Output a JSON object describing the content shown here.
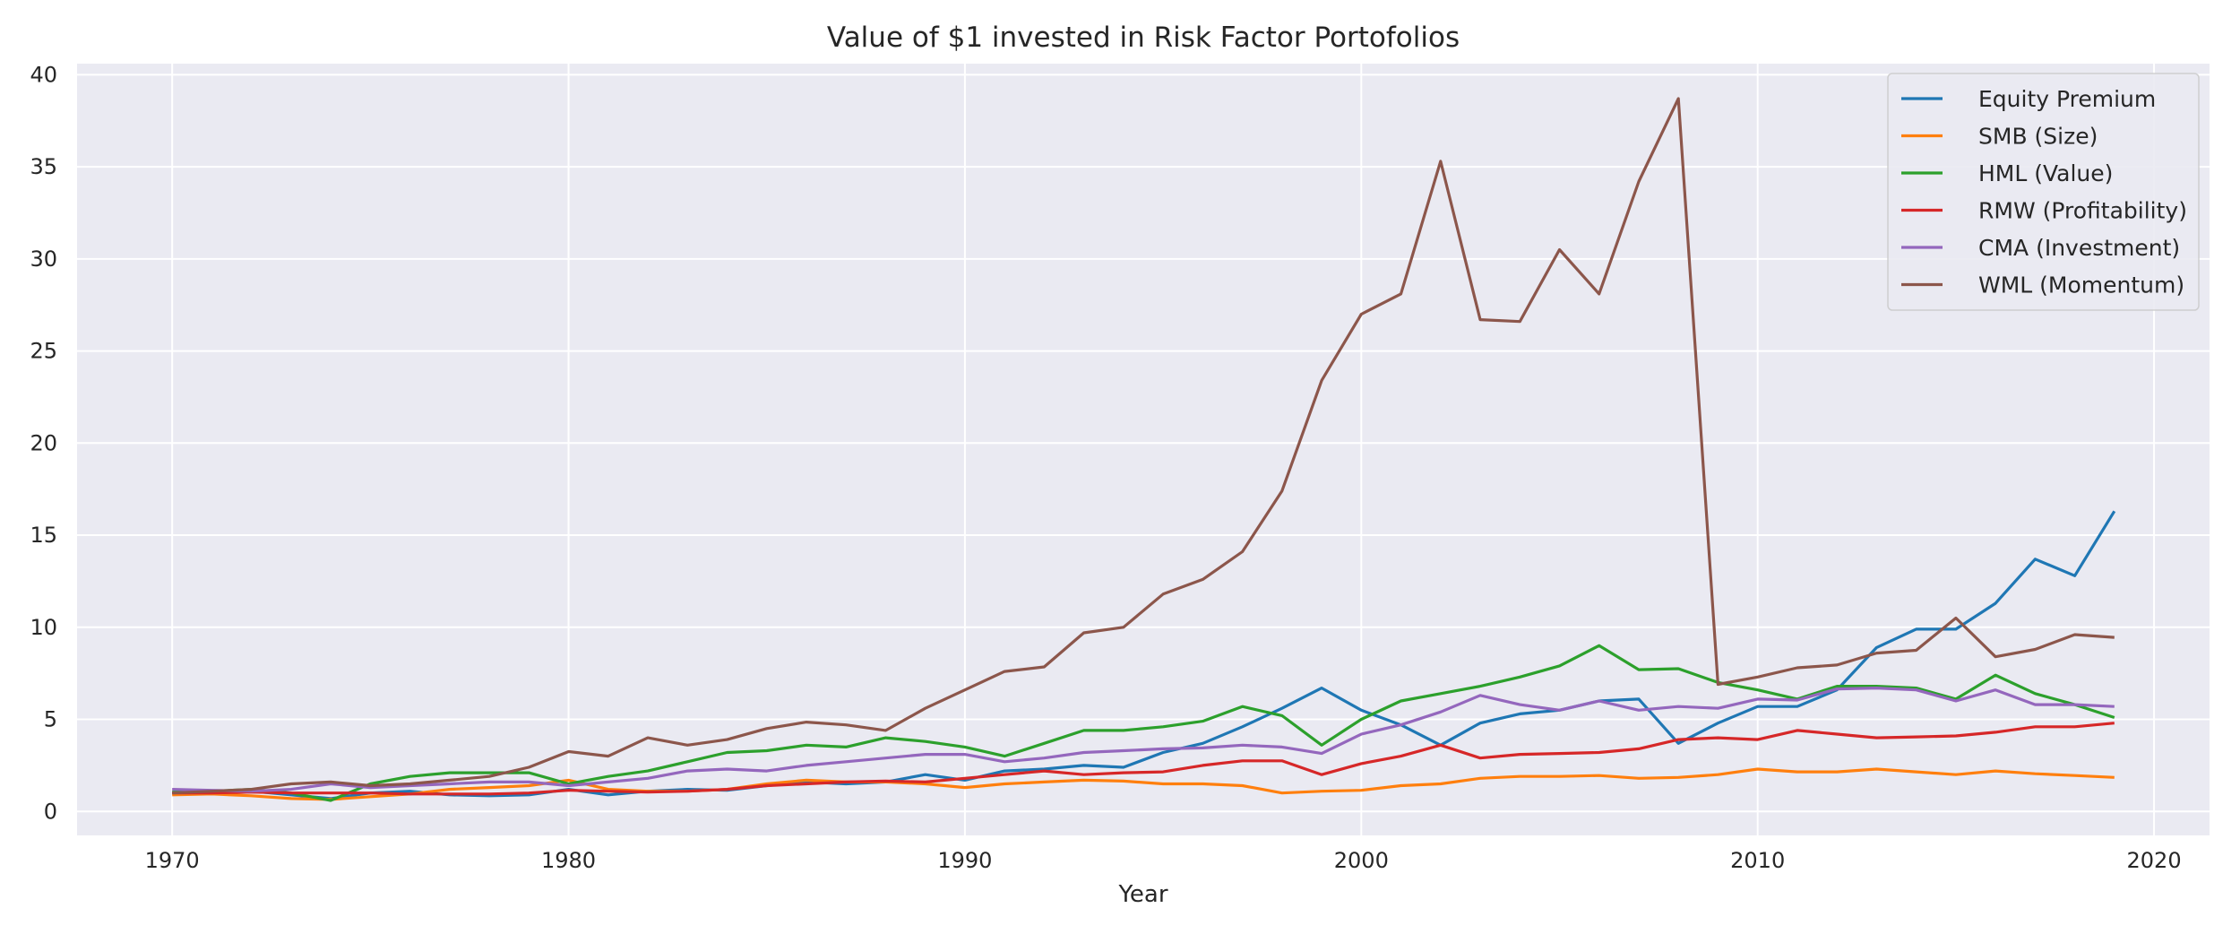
{
  "chart_data": {
    "type": "line",
    "title": "Value of $1 invested in Risk Factor Portofolios",
    "xlabel": "Year",
    "ylabel": "",
    "xlim": [
      1967.6,
      2021.4
    ],
    "ylim": [
      -1.3,
      40.6
    ],
    "xticks": [
      1970,
      1980,
      1990,
      2000,
      2010,
      2020
    ],
    "yticks": [
      0,
      5,
      10,
      15,
      20,
      25,
      30,
      35,
      40
    ],
    "grid": true,
    "legend_position": "top-right",
    "x": [
      1970,
      1971,
      1972,
      1973,
      1974,
      1975,
      1976,
      1977,
      1978,
      1979,
      1980,
      1981,
      1982,
      1983,
      1984,
      1985,
      1986,
      1987,
      1988,
      1989,
      1990,
      1991,
      1992,
      1993,
      1994,
      1995,
      1996,
      1997,
      1998,
      1999,
      2000,
      2001,
      2002,
      2003,
      2004,
      2005,
      2006,
      2007,
      2008,
      2009,
      2010,
      2011,
      2012,
      2013,
      2014,
      2015,
      2016,
      2017,
      2018,
      2019
    ],
    "series": [
      {
        "name": "Equity Premium",
        "color": "#1f77b4",
        "values": [
          1.0,
          1.05,
          1.1,
          0.9,
          0.7,
          1.0,
          1.1,
          0.9,
          0.85,
          0.9,
          1.2,
          0.9,
          1.1,
          1.2,
          1.15,
          1.4,
          1.6,
          1.5,
          1.6,
          2.0,
          1.7,
          2.2,
          2.3,
          2.5,
          2.4,
          3.2,
          3.7,
          4.6,
          5.6,
          6.7,
          5.5,
          4.7,
          3.6,
          4.8,
          5.3,
          5.5,
          6.0,
          6.1,
          3.7,
          4.8,
          5.7,
          5.7,
          6.6,
          8.9,
          9.9,
          9.9,
          11.3,
          13.7,
          12.8,
          16.3
        ]
      },
      {
        "name": "SMB (Size)",
        "color": "#ff7f0e",
        "values": [
          0.9,
          0.95,
          0.85,
          0.7,
          0.65,
          0.8,
          0.95,
          1.2,
          1.3,
          1.4,
          1.7,
          1.2,
          1.1,
          1.1,
          1.2,
          1.5,
          1.7,
          1.6,
          1.6,
          1.5,
          1.3,
          1.5,
          1.6,
          1.7,
          1.65,
          1.5,
          1.5,
          1.4,
          1.0,
          1.1,
          1.15,
          1.4,
          1.5,
          1.8,
          1.9,
          1.9,
          1.95,
          1.8,
          1.85,
          2.0,
          2.3,
          2.15,
          2.15,
          2.3,
          2.15,
          2.0,
          2.2,
          2.05,
          1.95,
          1.85
        ]
      },
      {
        "name": "HML (Value)",
        "color": "#2ca02c",
        "values": [
          1.05,
          1.1,
          1.2,
          1.0,
          0.6,
          1.5,
          1.9,
          2.1,
          2.1,
          2.1,
          1.5,
          1.9,
          2.2,
          2.7,
          3.2,
          3.3,
          3.6,
          3.5,
          4.0,
          3.8,
          3.5,
          3.0,
          3.7,
          4.4,
          4.4,
          4.6,
          4.9,
          5.7,
          5.2,
          3.6,
          5.0,
          6.0,
          6.4,
          6.8,
          7.3,
          7.9,
          9.0,
          7.7,
          7.75,
          7.0,
          6.6,
          6.1,
          6.8,
          6.8,
          6.7,
          6.1,
          7.4,
          6.4,
          5.8,
          5.1
        ]
      },
      {
        "name": "RMW (Profitability)",
        "color": "#d62728",
        "values": [
          1.0,
          1.0,
          1.05,
          1.0,
          1.0,
          1.0,
          0.95,
          0.95,
          0.95,
          1.0,
          1.15,
          1.1,
          1.05,
          1.1,
          1.2,
          1.4,
          1.5,
          1.6,
          1.65,
          1.6,
          1.8,
          2.0,
          2.2,
          2.0,
          2.1,
          2.15,
          2.5,
          2.75,
          2.75,
          2.0,
          2.6,
          3.0,
          3.6,
          2.9,
          3.1,
          3.15,
          3.2,
          3.4,
          3.9,
          4.0,
          3.9,
          4.4,
          4.2,
          4.0,
          4.05,
          4.1,
          4.3,
          4.6,
          4.6,
          4.8
        ]
      },
      {
        "name": "CMA (Investment)",
        "color": "#9467bd",
        "values": [
          1.2,
          1.15,
          1.1,
          1.2,
          1.5,
          1.3,
          1.4,
          1.5,
          1.6,
          1.6,
          1.4,
          1.6,
          1.8,
          2.2,
          2.3,
          2.2,
          2.5,
          2.7,
          2.9,
          3.1,
          3.1,
          2.7,
          2.9,
          3.2,
          3.3,
          3.4,
          3.45,
          3.6,
          3.5,
          3.15,
          4.2,
          4.7,
          5.4,
          6.3,
          5.8,
          5.5,
          6.0,
          5.5,
          5.7,
          5.6,
          6.1,
          6.05,
          6.65,
          6.7,
          6.6,
          6.0,
          6.6,
          5.8,
          5.8,
          5.7
        ]
      },
      {
        "name": "WML (Momentum)",
        "color": "#8c564b",
        "values": [
          1.0,
          1.1,
          1.2,
          1.5,
          1.6,
          1.4,
          1.5,
          1.7,
          1.9,
          2.4,
          3.25,
          3.0,
          4.0,
          3.6,
          3.9,
          4.5,
          4.85,
          4.7,
          4.4,
          5.6,
          6.6,
          7.6,
          7.85,
          9.7,
          10.0,
          11.8,
          12.6,
          14.1,
          17.4,
          23.4,
          27.0,
          28.1,
          35.3,
          26.7,
          26.6,
          30.5,
          28.1,
          34.2,
          38.7,
          6.9,
          7.3,
          7.8,
          7.95,
          8.6,
          8.75,
          10.5,
          8.4,
          8.8,
          9.6,
          9.45
        ]
      }
    ]
  }
}
